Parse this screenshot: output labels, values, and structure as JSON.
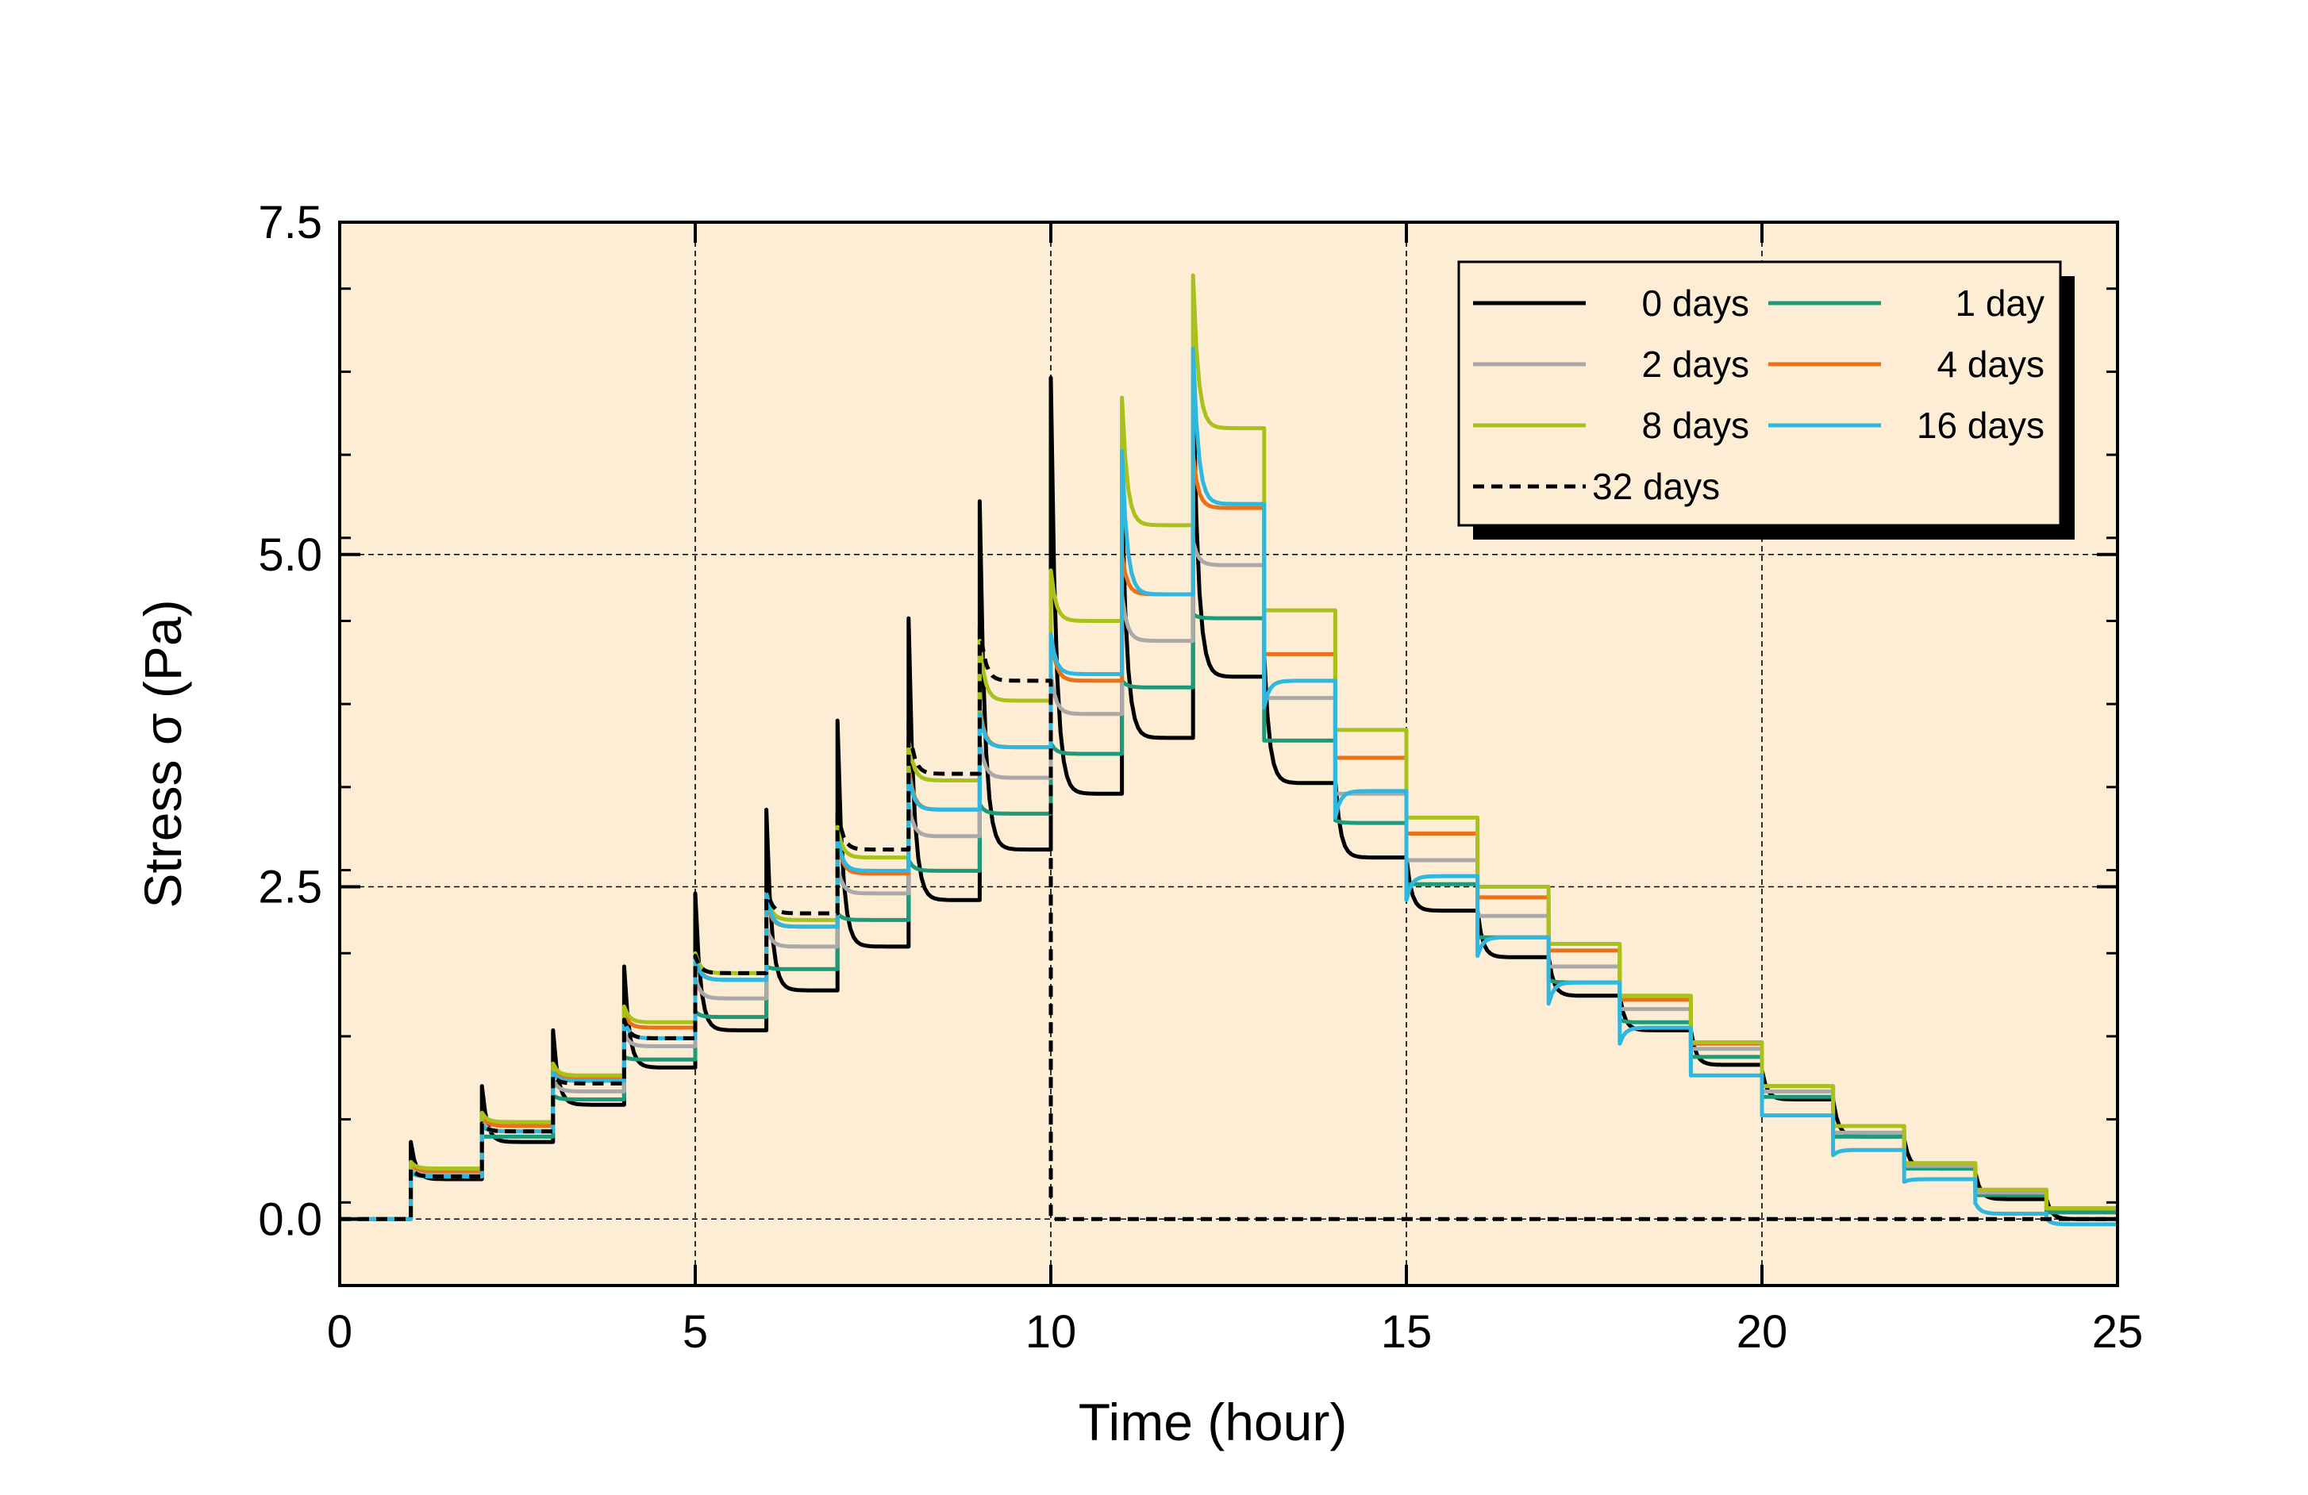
{
  "chart_data": {
    "type": "line",
    "xlabel": "Time (hour)",
    "ylabel": "Stress σ (Pa)",
    "xlim": [
      0,
      25
    ],
    "ylim": [
      -0.5,
      7.5
    ],
    "x_ticks": [
      0,
      5,
      10,
      15,
      20,
      25
    ],
    "x_tick_labels": [
      "0",
      "5",
      "10",
      "15",
      "20",
      "25"
    ],
    "y_ticks": [
      0,
      2.5,
      5,
      7.5
    ],
    "y_tick_labels": [
      "0.0",
      "2.5",
      "5.0",
      "7.5"
    ],
    "grid": true,
    "background_color": "#FDEDD5",
    "legend": {
      "placement": "top-right",
      "columns": 2
    },
    "series": [
      {
        "name": "0 days",
        "color": "#000000",
        "dash": "solid",
        "peaks": [
          0.58,
          1.0,
          1.42,
          1.9,
          2.45,
          3.08,
          3.75,
          4.52,
          5.4,
          6.33,
          5.45,
          6.35,
          4.25,
          3.3,
          2.72,
          2.32,
          1.97,
          1.68,
          1.42,
          1.12,
          0.9,
          0.6,
          0.35,
          0.15,
          0.0
        ],
        "ends": [
          0.3,
          0.58,
          0.86,
          1.14,
          1.42,
          1.72,
          2.05,
          2.4,
          2.78,
          3.2,
          3.62,
          4.08,
          3.28,
          2.72,
          2.32,
          1.97,
          1.68,
          1.42,
          1.16,
          0.9,
          0.62,
          0.38,
          0.15,
          0.0,
          0.0
        ]
      },
      {
        "name": "1 day",
        "color": "#1D9A7A",
        "dash": "solid",
        "peaks": [
          0.35,
          0.62,
          0.93,
          1.22,
          1.56,
          1.9,
          2.3,
          2.7,
          3.12,
          3.58,
          4.05,
          4.55,
          3.6,
          3.0,
          2.52,
          2.12,
          1.8,
          1.5,
          1.22,
          0.92,
          0.62,
          0.38,
          0.18,
          0.05,
          0.0
        ],
        "ends": [
          0.32,
          0.62,
          0.9,
          1.2,
          1.52,
          1.88,
          2.25,
          2.62,
          3.05,
          3.5,
          4.0,
          4.52,
          3.6,
          2.98,
          2.52,
          2.12,
          1.78,
          1.48,
          1.22,
          0.92,
          0.62,
          0.38,
          0.18,
          0.05,
          0.0
        ]
      },
      {
        "name": "2 days",
        "color": "#A9A9A9",
        "dash": "solid",
        "peaks": [
          0.4,
          0.74,
          1.05,
          1.4,
          1.82,
          2.2,
          2.65,
          3.12,
          3.6,
          4.1,
          4.7,
          5.1,
          3.92,
          3.2,
          2.7,
          2.28,
          1.9,
          1.58,
          1.28,
          0.96,
          0.65,
          0.4,
          0.2,
          0.08,
          0.0
        ],
        "ends": [
          0.34,
          0.66,
          0.96,
          1.3,
          1.66,
          2.05,
          2.45,
          2.88,
          3.32,
          3.8,
          4.35,
          4.92,
          3.92,
          3.2,
          2.7,
          2.28,
          1.9,
          1.58,
          1.28,
          0.96,
          0.65,
          0.4,
          0.2,
          0.08,
          0.0
        ]
      },
      {
        "name": "4 days",
        "color": "#E8711A",
        "dash": "solid",
        "peaks": [
          0.42,
          0.78,
          1.15,
          1.55,
          1.98,
          2.4,
          2.85,
          3.4,
          3.85,
          4.4,
          5.0,
          5.75,
          4.25,
          3.47,
          2.9,
          2.42,
          2.02,
          1.65,
          1.32,
          1.0,
          0.7,
          0.42,
          0.22,
          0.08,
          0.0
        ],
        "ends": [
          0.36,
          0.7,
          1.06,
          1.44,
          1.8,
          2.2,
          2.6,
          3.08,
          3.55,
          4.05,
          4.7,
          5.35,
          4.25,
          3.47,
          2.9,
          2.42,
          2.02,
          1.65,
          1.32,
          1.0,
          0.7,
          0.42,
          0.22,
          0.08,
          0.0
        ]
      },
      {
        "name": "8 days",
        "color": "#A8C21B",
        "dash": "solid",
        "peaks": [
          0.43,
          0.8,
          1.17,
          1.6,
          2.0,
          2.45,
          2.95,
          3.6,
          4.35,
          4.88,
          6.18,
          7.1,
          4.58,
          3.68,
          3.02,
          2.5,
          2.07,
          1.68,
          1.33,
          1.0,
          0.7,
          0.42,
          0.22,
          0.08,
          0.0
        ],
        "ends": [
          0.38,
          0.73,
          1.08,
          1.48,
          1.85,
          2.25,
          2.72,
          3.3,
          3.9,
          4.5,
          5.22,
          5.95,
          4.58,
          3.68,
          3.02,
          2.5,
          2.07,
          1.68,
          1.33,
          1.0,
          0.7,
          0.42,
          0.22,
          0.08,
          0.0
        ]
      },
      {
        "name": "16 days",
        "color": "#2EB7DF",
        "dash": "solid",
        "peaks": [
          0.35,
          0.7,
          1.1,
          1.5,
          1.95,
          2.45,
          2.88,
          3.35,
          3.8,
          4.4,
          5.78,
          6.55,
          3.85,
          3.02,
          2.4,
          1.98,
          1.62,
          1.32,
          1.08,
          0.78,
          0.48,
          0.28,
          0.12,
          0.0,
          0.0
        ],
        "ends": [
          0.32,
          0.66,
          1.04,
          1.36,
          1.8,
          2.2,
          2.62,
          3.08,
          3.55,
          4.1,
          4.7,
          5.38,
          4.05,
          3.22,
          2.58,
          2.12,
          1.78,
          1.44,
          1.08,
          0.78,
          0.52,
          0.3,
          0.04,
          -0.04,
          -0.04
        ]
      },
      {
        "name": "32 days",
        "color": "#000000",
        "dash": "dashed",
        "peaks": [
          0.38,
          0.72,
          1.08,
          1.5,
          1.98,
          2.5,
          3.1,
          3.75,
          4.5,
          0.0
        ],
        "ends": [
          0.32,
          0.66,
          1.02,
          1.36,
          1.85,
          2.3,
          2.78,
          3.35,
          4.05,
          0.0
        ]
      }
    ]
  }
}
